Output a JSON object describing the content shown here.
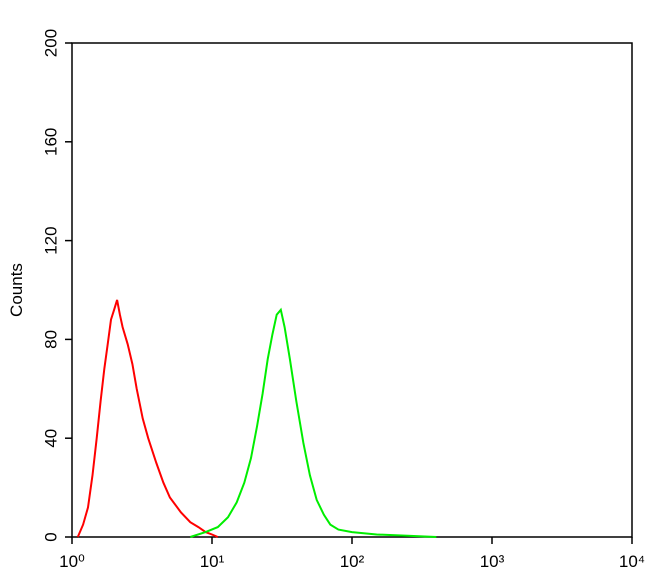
{
  "chart_data": {
    "type": "line",
    "y_label": "Counts",
    "log_x": true,
    "xlim": [
      1,
      10000
    ],
    "xticks": [
      {
        "value": 1,
        "label": "10⁰"
      },
      {
        "value": 10,
        "label": "10¹"
      },
      {
        "value": 100,
        "label": "10²"
      },
      {
        "value": 1000,
        "label": "10³"
      },
      {
        "value": 10000,
        "label": "10⁴"
      }
    ],
    "ylim": [
      0,
      200
    ],
    "yticks": [
      0,
      40,
      80,
      120,
      160,
      200
    ],
    "series": [
      {
        "color": "#ff0000",
        "x": [
          1.1,
          1.2,
          1.3,
          1.4,
          1.5,
          1.6,
          1.7,
          1.8,
          1.9,
          2.0,
          2.1,
          2.2,
          2.3,
          2.5,
          2.7,
          2.9,
          3.2,
          3.5,
          4.0,
          4.5,
          5.0,
          6.0,
          7.0,
          8.0,
          9.0,
          10,
          11
        ],
        "values": [
          0,
          5,
          12,
          25,
          40,
          55,
          68,
          78,
          88,
          92,
          96,
          90,
          85,
          78,
          70,
          60,
          48,
          40,
          30,
          22,
          16,
          10,
          6,
          4,
          2,
          1,
          0
        ]
      },
      {
        "color": "#00ee00",
        "x": [
          7,
          9,
          11,
          13,
          15,
          17,
          19,
          21,
          23,
          25,
          27,
          29,
          31,
          33,
          36,
          40,
          45,
          50,
          56,
          63,
          70,
          80,
          100,
          150,
          250,
          400
        ],
        "values": [
          0,
          2,
          4,
          8,
          14,
          22,
          32,
          45,
          58,
          72,
          82,
          90,
          92,
          85,
          72,
          55,
          38,
          25,
          15,
          9,
          5,
          3,
          2,
          1,
          0.5,
          0
        ]
      }
    ]
  }
}
